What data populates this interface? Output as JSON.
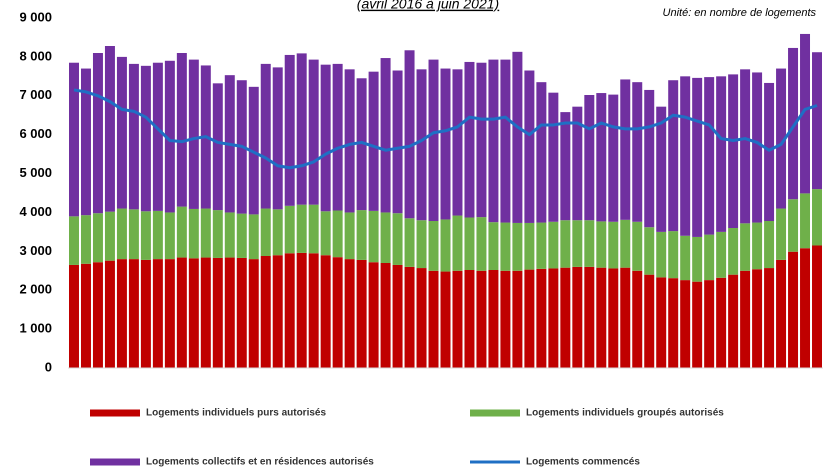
{
  "chart_data": {
    "type": "bar",
    "stacked": true,
    "title": "(avril 2016 à juin 2021)",
    "subtitle": "Unité: en nombre de logements",
    "ylim": [
      0,
      9000
    ],
    "yticks": [
      0,
      {
        "value": 1000,
        "label": "1 000"
      },
      {
        "value": 2000,
        "label": "2 000"
      },
      {
        "value": 3000,
        "label": "3 000"
      },
      {
        "value": 4000,
        "label": "4 000"
      },
      {
        "value": 5000,
        "label": "5 000"
      },
      {
        "value": 6000,
        "label": "6 000"
      },
      {
        "value": 7000,
        "label": "7 000"
      },
      {
        "value": 8000,
        "label": "8 000"
      },
      {
        "value": 9000,
        "label": "9 000"
      }
    ],
    "grid": false,
    "series": [
      {
        "name": "Logements individuels purs autorisés",
        "type": "bar",
        "color": "#c00000",
        "values": [
          2650,
          2680,
          2720,
          2760,
          2800,
          2800,
          2780,
          2800,
          2800,
          2840,
          2820,
          2840,
          2830,
          2840,
          2830,
          2800,
          2880,
          2900,
          2950,
          2960,
          2950,
          2900,
          2850,
          2800,
          2780,
          2720,
          2700,
          2650,
          2600,
          2570,
          2500,
          2480,
          2500,
          2520,
          2500,
          2520,
          2500,
          2500,
          2530,
          2550,
          2560,
          2580,
          2600,
          2600,
          2580,
          2560,
          2580,
          2500,
          2400,
          2330,
          2310,
          2260,
          2220,
          2260,
          2320,
          2400,
          2500,
          2540,
          2570,
          2780,
          2990,
          3080,
          3150
        ]
      },
      {
        "name": "Logements individuels groupés autorisés",
        "type": "bar",
        "color": "#6fb04a",
        "values": [
          1250,
          1250,
          1260,
          1260,
          1300,
          1280,
          1250,
          1240,
          1200,
          1310,
          1270,
          1260,
          1230,
          1160,
          1140,
          1150,
          1220,
          1180,
          1220,
          1240,
          1250,
          1130,
          1200,
          1200,
          1280,
          1320,
          1300,
          1330,
          1250,
          1230,
          1280,
          1340,
          1420,
          1350,
          1380,
          1230,
          1240,
          1230,
          1200,
          1190,
          1200,
          1220,
          1200,
          1200,
          1190,
          1200,
          1230,
          1260,
          1220,
          1170,
          1210,
          1140,
          1150,
          1170,
          1180,
          1200,
          1220,
          1200,
          1210,
          1320,
          1350,
          1410,
          1450
        ]
      },
      {
        "name": "Logements  collectifs et en résidences autorisés",
        "type": "bar",
        "color": "#7030a0",
        "values": [
          3950,
          3770,
          4120,
          4260,
          3900,
          3740,
          3740,
          3810,
          3900,
          3950,
          3840,
          3680,
          3260,
          3530,
          3430,
          3280,
          3720,
          3650,
          3880,
          3890,
          3730,
          3770,
          3770,
          3680,
          3390,
          3580,
          3970,
          3670,
          4320,
          3880,
          4150,
          3880,
          3760,
          4000,
          3970,
          4180,
          4190,
          4400,
          3920,
          3610,
          3320,
          2780,
          2920,
          3220,
          3300,
          3270,
          3610,
          3590,
          3530,
          3220,
          3880,
          4100,
          4090,
          4050,
          4000,
          3950,
          3960,
          3860,
          3550,
          3600,
          3890,
          4100,
          3520
        ]
      },
      {
        "name": "Logements commencés",
        "type": "line",
        "color": "#1f6fc4",
        "values": [
          7150,
          7100,
          7000,
          6850,
          6650,
          6600,
          6450,
          6150,
          5850,
          5820,
          5900,
          5950,
          5800,
          5750,
          5700,
          5550,
          5400,
          5200,
          5150,
          5200,
          5300,
          5500,
          5650,
          5750,
          5800,
          5700,
          5600,
          5650,
          5700,
          5850,
          6050,
          6100,
          6200,
          6450,
          6400,
          6400,
          6450,
          6200,
          6000,
          6250,
          6250,
          6300,
          6300,
          6150,
          6300,
          6200,
          6150,
          6150,
          6200,
          6300,
          6500,
          6450,
          6350,
          6250,
          5900,
          5850,
          5900,
          5800,
          5600,
          5750,
          6200,
          6650,
          6750
        ]
      }
    ]
  }
}
